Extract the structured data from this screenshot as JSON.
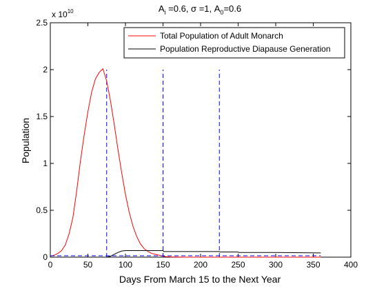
{
  "chart_data": {
    "type": "line",
    "title": "A_i =0.6, σ =1, A_0=0.6",
    "xlabel": "Days From March 15 to the Next Year",
    "ylabel": "Population",
    "xlim": [
      0,
      400
    ],
    "ylim": [
      0,
      2.5
    ],
    "x_ticks": [
      0,
      50,
      100,
      150,
      200,
      250,
      300,
      350,
      400
    ],
    "y_ticks": [
      0,
      0.5,
      1,
      1.5,
      2,
      2.5
    ],
    "x_tick_labels": [
      "0",
      "50",
      "100",
      "150",
      "200",
      "250",
      "300",
      "350",
      "400"
    ],
    "y_tick_labels": [
      "0",
      "0.5",
      "1",
      "1.5",
      "2",
      "2.5"
    ],
    "y_exponent": {
      "base": "x 10",
      "power": "10"
    },
    "grid": false,
    "legend_position": "top-right",
    "series": [
      {
        "name": "Total Population of Adult Monarch",
        "color": "#ff0000",
        "style": "solid",
        "x": [
          0,
          5,
          10,
          15,
          20,
          25,
          30,
          35,
          40,
          45,
          50,
          55,
          60,
          65,
          70,
          75,
          80,
          85,
          90,
          95,
          100,
          105,
          110,
          115,
          120,
          125,
          130,
          135,
          140,
          145,
          150,
          155,
          160,
          180,
          200,
          250,
          300,
          360
        ],
        "y": [
          0.01,
          0.02,
          0.04,
          0.07,
          0.13,
          0.25,
          0.42,
          0.7,
          1.02,
          1.3,
          1.55,
          1.76,
          1.9,
          1.97,
          2.01,
          1.88,
          1.67,
          1.42,
          1.15,
          0.9,
          0.67,
          0.48,
          0.33,
          0.22,
          0.14,
          0.09,
          0.06,
          0.04,
          0.03,
          0.02,
          0.01,
          0.005,
          0.003,
          0.0,
          0.0,
          0.0,
          0.0,
          0.0
        ]
      },
      {
        "name": "Population Reproductive Diapause Generation",
        "color": "#000000",
        "style": "solid",
        "x": [
          0,
          75,
          80,
          85,
          90,
          95,
          100,
          120,
          150,
          151,
          200,
          225,
          226,
          250,
          251,
          300,
          360
        ],
        "y": [
          0,
          0,
          0.01,
          0.03,
          0.05,
          0.065,
          0.07,
          0.07,
          0.07,
          0.06,
          0.06,
          0.06,
          0.055,
          0.055,
          0.05,
          0.05,
          0.045
        ]
      },
      {
        "name": "",
        "color": "#0000ff",
        "style": "dashed",
        "x": [
          0,
          360
        ],
        "y": [
          0.015,
          0.015
        ]
      }
    ],
    "vertical_lines": [
      {
        "x": 75,
        "y_top": 2.0,
        "color": "#0000ff",
        "style": "dashed"
      },
      {
        "x": 150,
        "y_top": 2.0,
        "color": "#0000ff",
        "style": "dashed"
      },
      {
        "x": 225,
        "y_top": 2.0,
        "color": "#0000ff",
        "style": "dashed"
      }
    ]
  }
}
